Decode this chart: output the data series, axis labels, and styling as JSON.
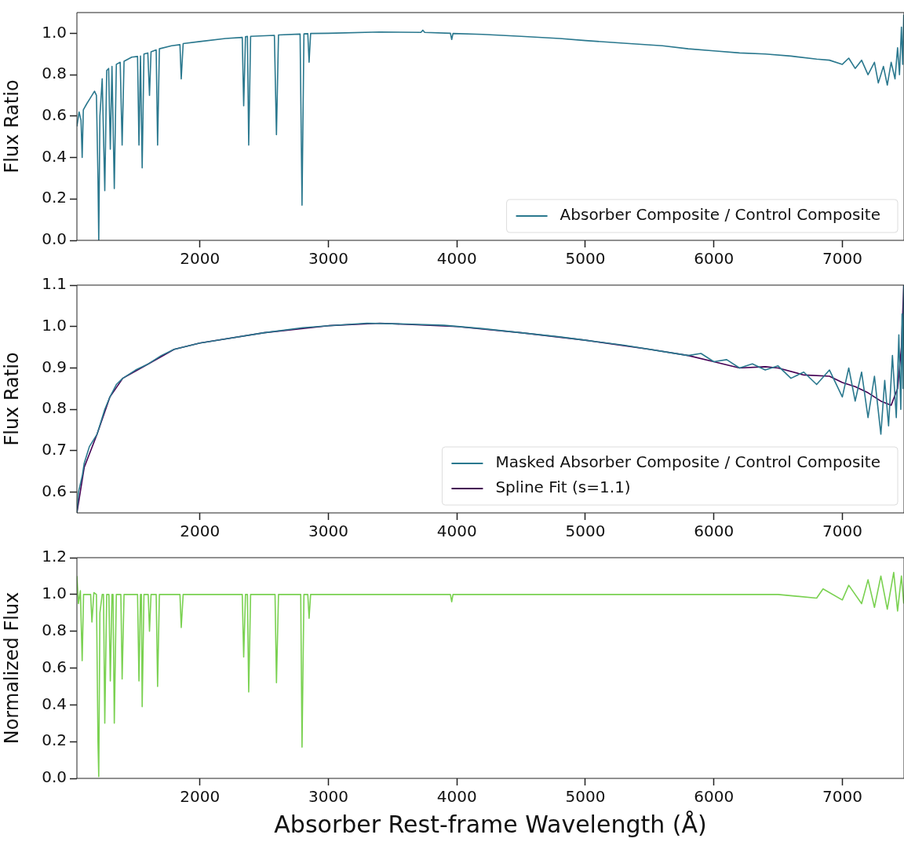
{
  "chart_data": [
    {
      "type": "line",
      "ylabel": "Flux Ratio",
      "xlim": [
        1043,
        7480
      ],
      "xticks": [
        2000,
        3000,
        4000,
        5000,
        6000,
        7000
      ],
      "ylim": [
        0,
        1.1
      ],
      "yticks": [
        {
          "value": 0,
          "label": "0.0"
        },
        {
          "value": 0.2,
          "label": "0.2"
        },
        {
          "value": 0.4,
          "label": "0.4"
        },
        {
          "value": 0.6,
          "label": "0.6"
        },
        {
          "value": 0.8,
          "label": "0.8"
        },
        {
          "value": 1,
          "label": "1.0"
        }
      ],
      "grid": false,
      "legend": "lower right",
      "series": [
        {
          "name": "Absorber Composite / Control Composite",
          "color": "#2a788e",
          "x": [
            1043,
            1060,
            1075,
            1084,
            1093,
            1120,
            1150,
            1180,
            1195,
            1207,
            1213,
            1222,
            1240,
            1260,
            1275,
            1290,
            1303,
            1316,
            1334,
            1350,
            1380,
            1395,
            1410,
            1470,
            1515,
            1526,
            1538,
            1551,
            1565,
            1595,
            1608,
            1620,
            1660,
            1671,
            1685,
            1780,
            1845,
            1855,
            1870,
            2000,
            2200,
            2330,
            2341,
            2355,
            2370,
            2380,
            2395,
            2580,
            2596,
            2612,
            2780,
            2795,
            2810,
            2840,
            2850,
            2862,
            3000,
            3400,
            3720,
            3735,
            3750,
            3950,
            3960,
            3970,
            4200,
            4500,
            4800,
            5000,
            5300,
            5600,
            5800,
            6000,
            6200,
            6400,
            6600,
            6800,
            6900,
            7000,
            7050,
            7100,
            7150,
            7200,
            7250,
            7280,
            7320,
            7350,
            7380,
            7410,
            7430,
            7445,
            7460,
            7470,
            7478
          ],
          "values": [
            0.55,
            0.62,
            0.58,
            0.4,
            0.63,
            0.66,
            0.69,
            0.72,
            0.7,
            0.3,
            0.0,
            0.6,
            0.78,
            0.24,
            0.82,
            0.83,
            0.44,
            0.84,
            0.25,
            0.85,
            0.86,
            0.46,
            0.865,
            0.885,
            0.888,
            0.46,
            0.89,
            0.35,
            0.9,
            0.905,
            0.7,
            0.91,
            0.92,
            0.46,
            0.925,
            0.94,
            0.945,
            0.78,
            0.95,
            0.96,
            0.975,
            0.98,
            0.65,
            0.983,
            0.985,
            0.46,
            0.985,
            0.99,
            0.51,
            0.992,
            0.996,
            0.17,
            0.997,
            0.998,
            0.86,
            0.999,
            1.0,
            1.006,
            1.004,
            1.015,
            1.004,
            1.0,
            0.97,
            0.999,
            0.995,
            0.985,
            0.975,
            0.965,
            0.952,
            0.94,
            0.925,
            0.915,
            0.905,
            0.9,
            0.89,
            0.875,
            0.87,
            0.85,
            0.88,
            0.83,
            0.87,
            0.8,
            0.86,
            0.76,
            0.84,
            0.75,
            0.86,
            0.78,
            0.93,
            0.8,
            1.03,
            0.85,
            1.09
          ]
        }
      ]
    },
    {
      "type": "line",
      "ylabel": "Flux Ratio",
      "xlim": [
        1043,
        7480
      ],
      "xticks": [
        2000,
        3000,
        4000,
        5000,
        6000,
        7000
      ],
      "ylim": [
        0.55,
        1.1
      ],
      "yticks": [
        {
          "value": 0.6,
          "label": "0.6"
        },
        {
          "value": 0.7,
          "label": "0.7"
        },
        {
          "value": 0.8,
          "label": "0.8"
        },
        {
          "value": 0.9,
          "label": "0.9"
        },
        {
          "value": 1,
          "label": "1.0"
        },
        {
          "value": 1.1,
          "label": "1.1"
        }
      ],
      "grid": false,
      "legend": "lower right",
      "series": [
        {
          "name": "Masked Absorber Composite / Control Composite",
          "color": "#2a788e",
          "x": [
            1043,
            1055,
            1070,
            1085,
            1100,
            1120,
            1140,
            1160,
            1180,
            1200,
            1230,
            1260,
            1300,
            1350,
            1400,
            1500,
            1600,
            1700,
            1800,
            2000,
            2200,
            2500,
            2800,
            3000,
            3300,
            3600,
            3900,
            4200,
            4500,
            4800,
            5000,
            5300,
            5600,
            5800,
            5900,
            6000,
            6100,
            6200,
            6300,
            6400,
            6500,
            6600,
            6700,
            6800,
            6900,
            7000,
            7050,
            7100,
            7150,
            7200,
            7250,
            7300,
            7330,
            7360,
            7390,
            7420,
            7440,
            7455,
            7465,
            7472,
            7478
          ],
          "values": [
            0.55,
            0.6,
            0.62,
            0.64,
            0.67,
            0.69,
            0.71,
            0.72,
            0.73,
            0.74,
            0.77,
            0.8,
            0.83,
            0.86,
            0.875,
            0.895,
            0.91,
            0.93,
            0.945,
            0.96,
            0.97,
            0.985,
            0.997,
            1.002,
            1.008,
            1.006,
            1.003,
            0.995,
            0.985,
            0.975,
            0.967,
            0.955,
            0.94,
            0.93,
            0.935,
            0.915,
            0.92,
            0.9,
            0.91,
            0.895,
            0.905,
            0.875,
            0.89,
            0.86,
            0.895,
            0.83,
            0.9,
            0.82,
            0.89,
            0.78,
            0.88,
            0.74,
            0.87,
            0.76,
            0.93,
            0.78,
            0.98,
            0.8,
            1.03,
            0.85,
            1.1
          ]
        },
        {
          "name": "Spline Fit (s=1.1)",
          "color": "#440154",
          "x": [
            1043,
            1100,
            1200,
            1300,
            1400,
            1600,
            1800,
            2000,
            2500,
            3000,
            3400,
            4000,
            4500,
            5000,
            5500,
            5800,
            6000,
            6200,
            6400,
            6500,
            6700,
            6900,
            7000,
            7100,
            7200,
            7300,
            7380,
            7430,
            7460,
            7478
          ],
          "values": [
            0.55,
            0.66,
            0.74,
            0.83,
            0.875,
            0.91,
            0.945,
            0.96,
            0.985,
            1.002,
            1.008,
            1.0,
            0.985,
            0.967,
            0.945,
            0.93,
            0.915,
            0.9,
            0.903,
            0.9,
            0.883,
            0.88,
            0.865,
            0.855,
            0.84,
            0.82,
            0.81,
            0.85,
            0.95,
            1.1
          ]
        }
      ]
    },
    {
      "type": "line",
      "ylabel": "Normalized Flux",
      "xlabel": "Absorber Rest-frame Wavelength (Å)",
      "xlim": [
        1043,
        7480
      ],
      "xticks": [
        2000,
        3000,
        4000,
        5000,
        6000,
        7000
      ],
      "ylim": [
        0,
        1.2
      ],
      "yticks": [
        {
          "value": 0,
          "label": "0.0"
        },
        {
          "value": 0.2,
          "label": "0.2"
        },
        {
          "value": 0.4,
          "label": "0.4"
        },
        {
          "value": 0.6,
          "label": "0.6"
        },
        {
          "value": 0.8,
          "label": "0.8"
        },
        {
          "value": 1,
          "label": "1.0"
        },
        {
          "value": 1.2,
          "label": "1.2"
        }
      ],
      "grid": false,
      "series": [
        {
          "color": "#7ad151",
          "x": [
            1043,
            1055,
            1070,
            1084,
            1095,
            1150,
            1160,
            1175,
            1195,
            1207,
            1213,
            1222,
            1240,
            1250,
            1260,
            1275,
            1292,
            1303,
            1316,
            1324,
            1334,
            1350,
            1385,
            1395,
            1410,
            1515,
            1526,
            1538,
            1545,
            1551,
            1565,
            1598,
            1608,
            1620,
            1660,
            1671,
            1685,
            1845,
            1855,
            1870,
            2330,
            2341,
            2355,
            2370,
            2380,
            2395,
            2585,
            2596,
            2612,
            2785,
            2795,
            2810,
            2840,
            2850,
            2862,
            3950,
            3960,
            3970,
            5000,
            6000,
            6500,
            6800,
            6850,
            7000,
            7050,
            7150,
            7200,
            7250,
            7300,
            7350,
            7400,
            7430,
            7460,
            7478
          ],
          "values": [
            1.1,
            0.95,
            1.02,
            0.64,
            1.0,
            1.0,
            0.85,
            1.01,
            1.0,
            0.2,
            0.01,
            0.9,
            1.0,
            1.0,
            0.3,
            1.0,
            1.0,
            0.53,
            1.0,
            1.0,
            0.3,
            1.0,
            1.0,
            0.54,
            1.0,
            1.0,
            0.53,
            1.0,
            1.0,
            0.39,
            1.0,
            1.0,
            0.8,
            1.0,
            1.0,
            0.5,
            1.0,
            1.0,
            0.82,
            1.0,
            1.0,
            0.66,
            1.0,
            1.0,
            0.47,
            1.0,
            1.0,
            0.52,
            1.0,
            1.0,
            0.17,
            1.0,
            1.0,
            0.87,
            1.0,
            1.0,
            0.96,
            1.0,
            1.0,
            1.0,
            1.0,
            0.98,
            1.03,
            0.97,
            1.05,
            0.95,
            1.08,
            0.93,
            1.1,
            0.92,
            1.12,
            0.91,
            1.1,
            0.95
          ]
        }
      ]
    }
  ]
}
